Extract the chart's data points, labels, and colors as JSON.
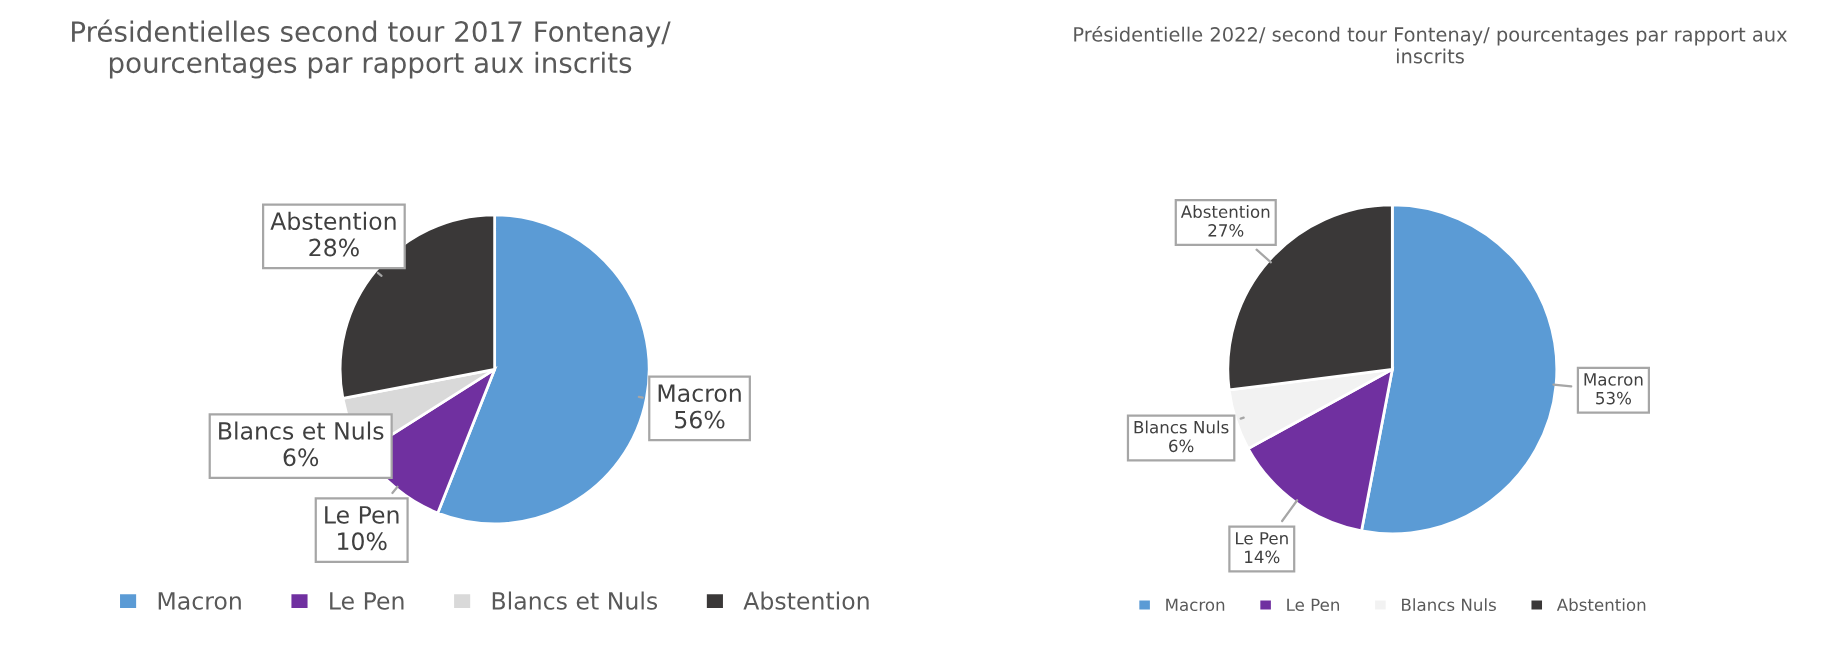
{
  "chart_data": [
    {
      "type": "pie",
      "title": "Présidentielles second tour 2017 Fontenay/ pourcentages par rapport aux inscrits",
      "categories": [
        "Macron",
        "Le Pen",
        "Blancs et Nuls",
        "Abstention"
      ],
      "values": [
        56,
        10,
        6,
        28
      ],
      "value_labels": [
        "56%",
        "10%",
        "6%",
        "28%"
      ],
      "colors": [
        "#5b9bd5",
        "#7030a0",
        "#d9d9d9",
        "#3a3838"
      ],
      "legend": "bottom"
    },
    {
      "type": "pie",
      "title": "Présidentielle 2022/ second tour Fontenay/ pourcentages par rapport aux inscrits",
      "categories": [
        "Macron",
        "Le Pen",
        "Blancs Nuls",
        "Abstention"
      ],
      "values": [
        53,
        14,
        6,
        27
      ],
      "value_labels": [
        "53%",
        "14%",
        "6%",
        "27%"
      ],
      "colors": [
        "#5b9bd5",
        "#7030a0",
        "#f2f2f2",
        "#3a3838"
      ],
      "legend": "bottom"
    }
  ]
}
